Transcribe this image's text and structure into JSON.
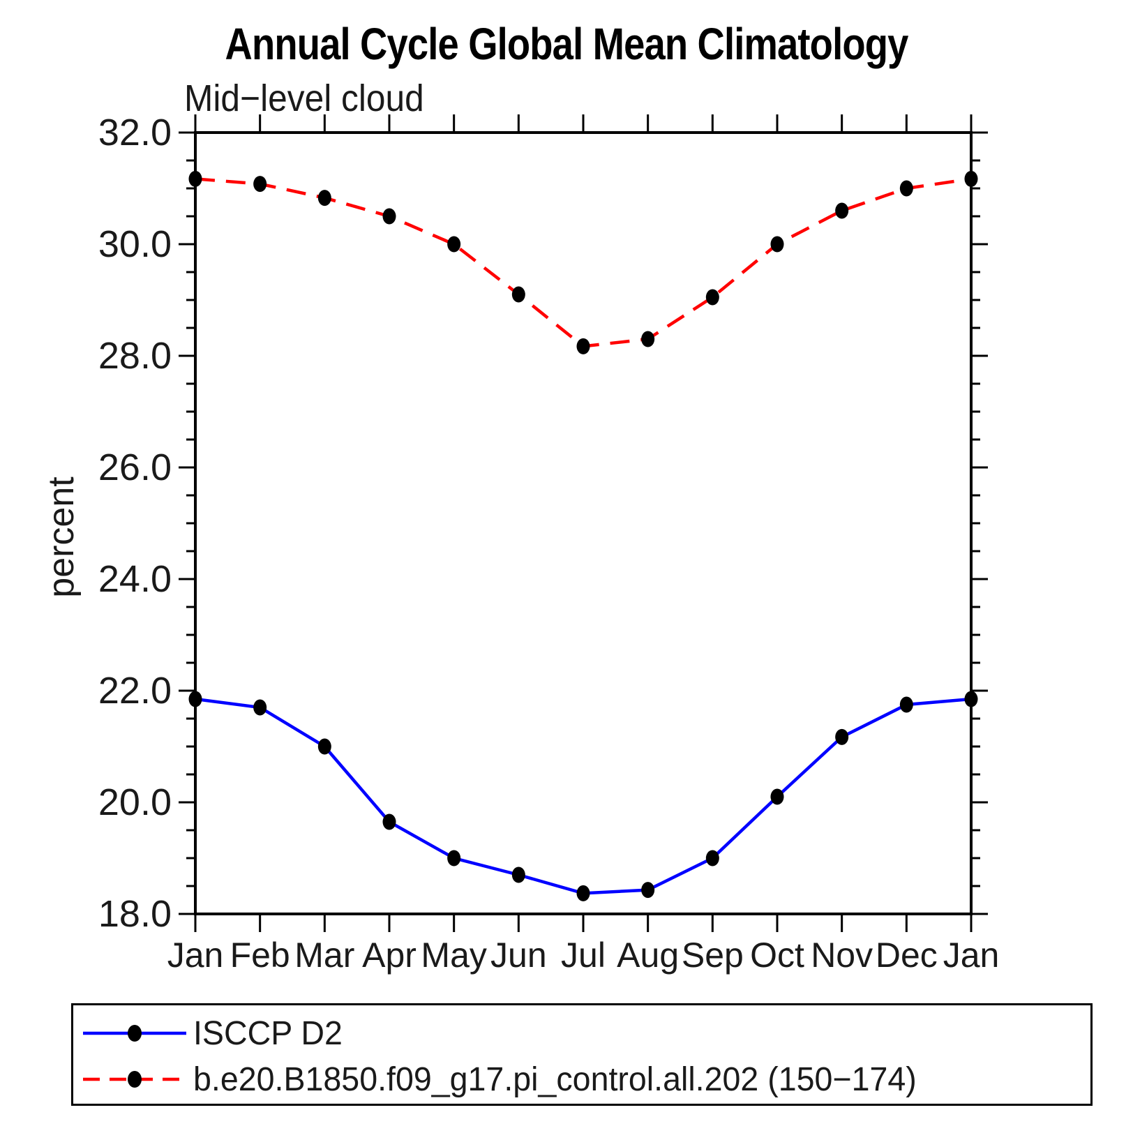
{
  "title": "Annual Cycle Global Mean Climatology",
  "subtitle": "Mid−level cloud",
  "ylabel": "percent",
  "chart_data": {
    "type": "line",
    "title": "Annual Cycle Global Mean Climatology",
    "subtitle": "Mid−level cloud",
    "xlabel": "",
    "ylabel": "percent",
    "ylim": [
      18.0,
      32.0
    ],
    "ytick_interval": 2.0,
    "yminor_interval": 0.5,
    "ytick_labels": [
      "18.0",
      "20.0",
      "22.0",
      "24.0",
      "26.0",
      "28.0",
      "30.0",
      "32.0"
    ],
    "categories": [
      "Jan",
      "Feb",
      "Mar",
      "Apr",
      "May",
      "Jun",
      "Jul",
      "Aug",
      "Sep",
      "Oct",
      "Nov",
      "Dec",
      "Jan"
    ],
    "grid": false,
    "legend_position": "bottom",
    "marker_color": "#000000",
    "series": [
      {
        "name": "ISCCP D2",
        "color": "#0000ff",
        "style": "solid",
        "marker": "filled-circle",
        "values": [
          21.85,
          21.7,
          21.0,
          19.65,
          19.0,
          18.7,
          18.37,
          18.43,
          19.0,
          20.1,
          21.17,
          21.75,
          21.85
        ]
      },
      {
        "name": "b.e20.B1850.f09_g17.pi_control.all.202 (150−174)",
        "color": "#ff0000",
        "style": "dashed",
        "marker": "filled-circle",
        "values": [
          31.17,
          31.08,
          30.83,
          30.5,
          30.0,
          29.1,
          28.17,
          28.3,
          29.05,
          30.0,
          30.6,
          31.0,
          31.17
        ]
      }
    ]
  }
}
